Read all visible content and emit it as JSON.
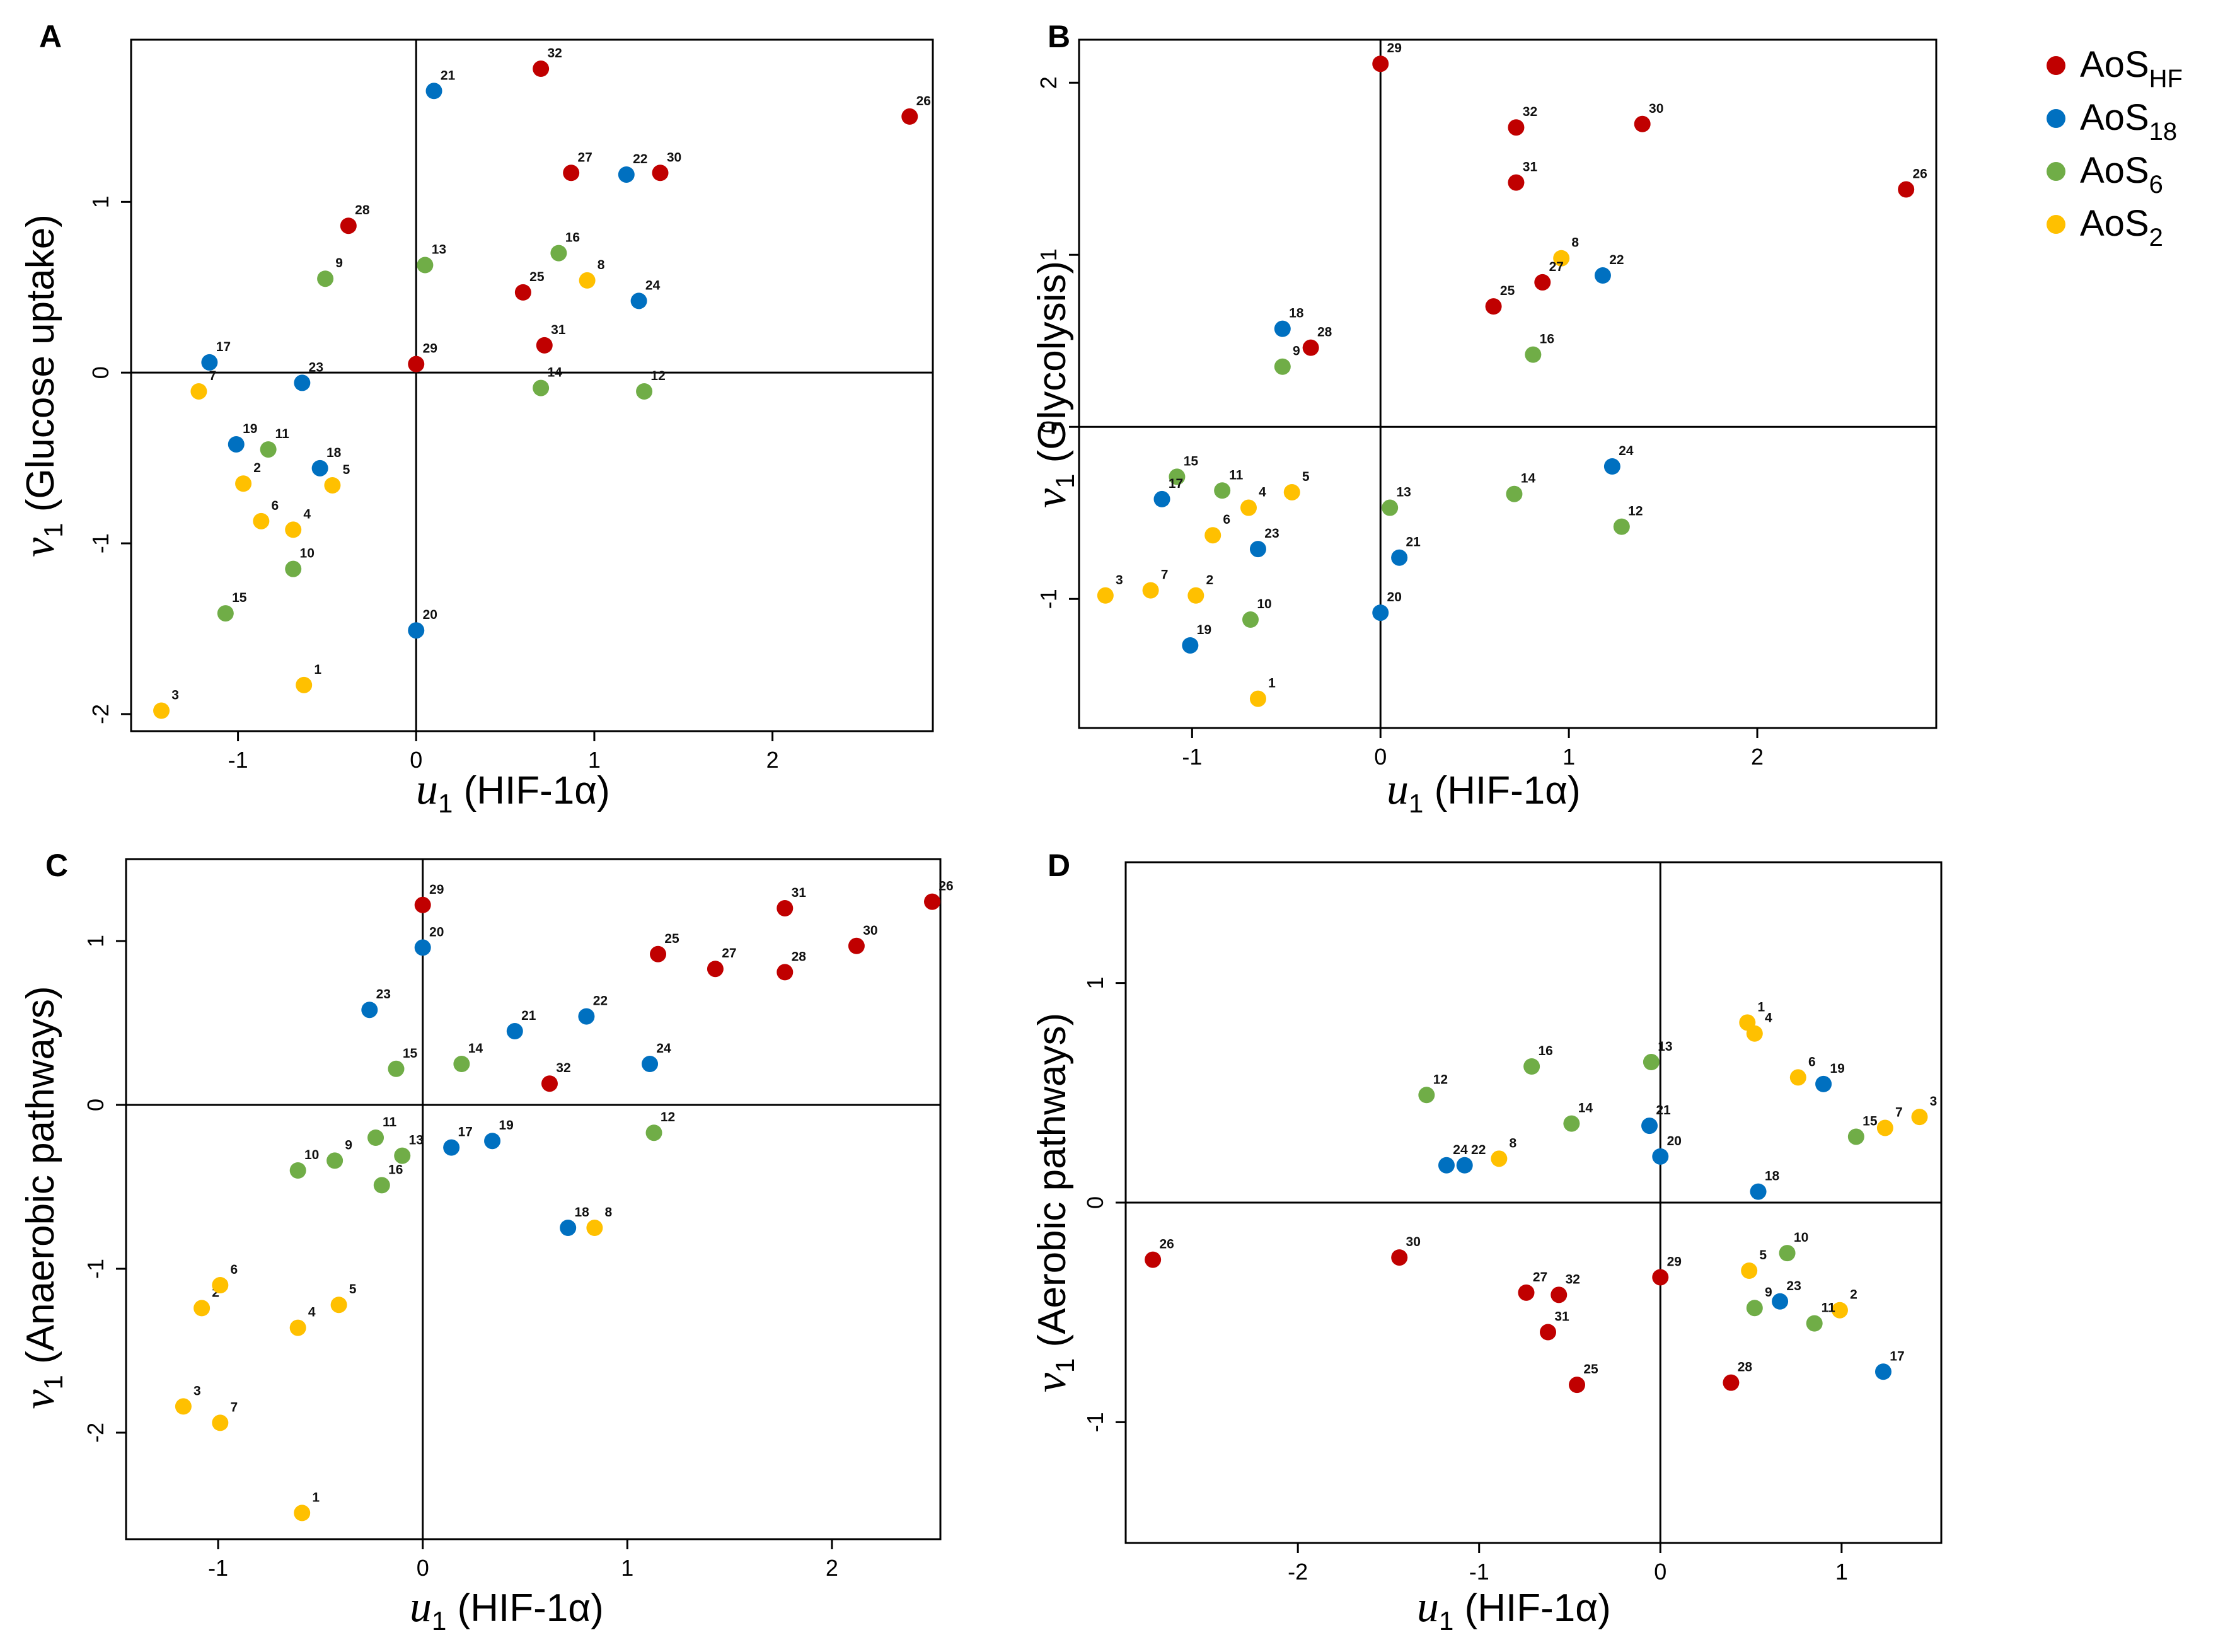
{
  "legend": {
    "groups": [
      {
        "key": "HF",
        "base": "AoS",
        "sub": "HF",
        "color": "#c00000"
      },
      {
        "key": "18",
        "base": "AoS",
        "sub": "18",
        "color": "#0070c0"
      },
      {
        "key": "6",
        "base": "AoS",
        "sub": "6",
        "color": "#70ad47"
      },
      {
        "key": "2",
        "base": "AoS",
        "sub": "2",
        "color": "#ffc000"
      }
    ]
  },
  "chart_data": [
    {
      "type": "scatter",
      "panel": "A",
      "xlabel": {
        "symbol": "u",
        "sub": "1",
        "text": " (HIF-1α)"
      },
      "ylabel": {
        "symbol": "v",
        "sub": "1",
        "text": "  (Glucose uptake)"
      },
      "xlim": [
        -1.6,
        2.9
      ],
      "ylim": [
        -2.1,
        1.95
      ],
      "xticks": [
        {
          "v": -1,
          "label": "-1"
        },
        {
          "v": 0,
          "label": "0"
        },
        {
          "v": 1,
          "label": "1"
        },
        {
          "v": 2,
          "label": "2"
        }
      ],
      "yticks": [
        {
          "v": -2,
          "label": "-2"
        },
        {
          "v": -1,
          "label": "-1"
        },
        {
          "v": 0,
          "label": "0"
        },
        {
          "v": 1,
          "label": "1"
        }
      ],
      "points": [
        {
          "id": "1",
          "group": "2",
          "x": -0.63,
          "y": -1.83
        },
        {
          "id": "2",
          "group": "2",
          "x": -0.97,
          "y": -0.65
        },
        {
          "id": "3",
          "group": "2",
          "x": -1.43,
          "y": -1.98
        },
        {
          "id": "4",
          "group": "2",
          "x": -0.69,
          "y": -0.92
        },
        {
          "id": "5",
          "group": "2",
          "x": -0.47,
          "y": -0.66
        },
        {
          "id": "6",
          "group": "2",
          "x": -0.87,
          "y": -0.87
        },
        {
          "id": "7",
          "group": "2",
          "x": -1.22,
          "y": -0.11
        },
        {
          "id": "8",
          "group": "2",
          "x": 0.96,
          "y": 0.54
        },
        {
          "id": "9",
          "group": "6",
          "x": -0.51,
          "y": 0.55
        },
        {
          "id": "10",
          "group": "6",
          "x": -0.69,
          "y": -1.15
        },
        {
          "id": "11",
          "group": "6",
          "x": -0.83,
          "y": -0.45
        },
        {
          "id": "12",
          "group": "6",
          "x": 1.28,
          "y": -0.11
        },
        {
          "id": "13",
          "group": "6",
          "x": 0.05,
          "y": 0.63
        },
        {
          "id": "14",
          "group": "6",
          "x": 0.7,
          "y": -0.09
        },
        {
          "id": "15",
          "group": "6",
          "x": -1.07,
          "y": -1.41
        },
        {
          "id": "16",
          "group": "6",
          "x": 0.8,
          "y": 0.7
        },
        {
          "id": "17",
          "group": "18",
          "x": -1.16,
          "y": 0.06
        },
        {
          "id": "18",
          "group": "18",
          "x": -0.54,
          "y": -0.56
        },
        {
          "id": "19",
          "group": "18",
          "x": -1.01,
          "y": -0.42
        },
        {
          "id": "20",
          "group": "18",
          "x": 0.0,
          "y": -1.51
        },
        {
          "id": "21",
          "group": "18",
          "x": 0.1,
          "y": 1.65
        },
        {
          "id": "22",
          "group": "18",
          "x": 1.18,
          "y": 1.16
        },
        {
          "id": "23",
          "group": "18",
          "x": -0.64,
          "y": -0.06
        },
        {
          "id": "24",
          "group": "18",
          "x": 1.25,
          "y": 0.42
        },
        {
          "id": "25",
          "group": "HF",
          "x": 0.6,
          "y": 0.47
        },
        {
          "id": "26",
          "group": "HF",
          "x": 2.77,
          "y": 1.5
        },
        {
          "id": "27",
          "group": "HF",
          "x": 0.87,
          "y": 1.17
        },
        {
          "id": "28",
          "group": "HF",
          "x": -0.38,
          "y": 0.86
        },
        {
          "id": "29",
          "group": "HF",
          "x": 0.0,
          "y": 0.05
        },
        {
          "id": "30",
          "group": "HF",
          "x": 1.37,
          "y": 1.17
        },
        {
          "id": "31",
          "group": "HF",
          "x": 0.72,
          "y": 0.16
        },
        {
          "id": "32",
          "group": "HF",
          "x": 0.7,
          "y": 1.78
        }
      ]
    },
    {
      "type": "scatter",
      "panel": "B",
      "xlabel": {
        "symbol": "u",
        "sub": "1",
        "text": " (HIF-1α)"
      },
      "ylabel": {
        "symbol": "v",
        "sub": "1",
        "text": "  (Glycolysis)"
      },
      "xlim": [
        -1.6,
        2.95
      ],
      "ylim": [
        -1.75,
        2.25
      ],
      "xticks": [
        {
          "v": -1,
          "label": "-1"
        },
        {
          "v": 0,
          "label": "0"
        },
        {
          "v": 1,
          "label": "1"
        },
        {
          "v": 2,
          "label": "2"
        }
      ],
      "yticks": [
        {
          "v": -1,
          "label": "-1"
        },
        {
          "v": 0,
          "label": "0"
        },
        {
          "v": 1,
          "label": "1"
        },
        {
          "v": 2,
          "label": "2"
        }
      ],
      "points": [
        {
          "id": "1",
          "group": "2",
          "x": -0.65,
          "y": -1.58
        },
        {
          "id": "2",
          "group": "2",
          "x": -0.98,
          "y": -0.98
        },
        {
          "id": "3",
          "group": "2",
          "x": -1.46,
          "y": -0.98
        },
        {
          "id": "4",
          "group": "2",
          "x": -0.7,
          "y": -0.47
        },
        {
          "id": "5",
          "group": "2",
          "x": -0.47,
          "y": -0.38
        },
        {
          "id": "6",
          "group": "2",
          "x": -0.89,
          "y": -0.63
        },
        {
          "id": "7",
          "group": "2",
          "x": -1.22,
          "y": -0.95
        },
        {
          "id": "8",
          "group": "2",
          "x": 0.96,
          "y": 0.98
        },
        {
          "id": "9",
          "group": "6",
          "x": -0.52,
          "y": 0.35
        },
        {
          "id": "10",
          "group": "6",
          "x": -0.69,
          "y": -1.12
        },
        {
          "id": "11",
          "group": "6",
          "x": -0.84,
          "y": -0.37
        },
        {
          "id": "12",
          "group": "6",
          "x": 1.28,
          "y": -0.58
        },
        {
          "id": "13",
          "group": "6",
          "x": 0.05,
          "y": -0.47
        },
        {
          "id": "14",
          "group": "6",
          "x": 0.71,
          "y": -0.39
        },
        {
          "id": "15",
          "group": "6",
          "x": -1.08,
          "y": -0.29
        },
        {
          "id": "16",
          "group": "6",
          "x": 0.81,
          "y": 0.42
        },
        {
          "id": "17",
          "group": "18",
          "x": -1.16,
          "y": -0.42
        },
        {
          "id": "18",
          "group": "18",
          "x": -0.52,
          "y": 0.57
        },
        {
          "id": "19",
          "group": "18",
          "x": -1.01,
          "y": -1.27
        },
        {
          "id": "20",
          "group": "18",
          "x": 0.0,
          "y": -1.08
        },
        {
          "id": "21",
          "group": "18",
          "x": 0.1,
          "y": -0.76
        },
        {
          "id": "22",
          "group": "18",
          "x": 1.18,
          "y": 0.88
        },
        {
          "id": "23",
          "group": "18",
          "x": -0.65,
          "y": -0.71
        },
        {
          "id": "24",
          "group": "18",
          "x": 1.23,
          "y": -0.23
        },
        {
          "id": "25",
          "group": "HF",
          "x": 0.6,
          "y": 0.7
        },
        {
          "id": "26",
          "group": "HF",
          "x": 2.79,
          "y": 1.38
        },
        {
          "id": "27",
          "group": "HF",
          "x": 0.86,
          "y": 0.84
        },
        {
          "id": "28",
          "group": "HF",
          "x": -0.37,
          "y": 0.46
        },
        {
          "id": "29",
          "group": "HF",
          "x": 0.0,
          "y": 2.11
        },
        {
          "id": "30",
          "group": "HF",
          "x": 1.39,
          "y": 1.76
        },
        {
          "id": "31",
          "group": "HF",
          "x": 0.72,
          "y": 1.42
        },
        {
          "id": "32",
          "group": "HF",
          "x": 0.72,
          "y": 1.74
        }
      ]
    },
    {
      "type": "scatter",
      "panel": "C",
      "xlabel": {
        "symbol": "u",
        "sub": "1",
        "text": " (HIF-1α)"
      },
      "ylabel": {
        "symbol": "v",
        "sub": "1",
        "text": "  (Anaerobic pathways)"
      },
      "xlim": [
        -1.45,
        2.53
      ],
      "ylim": [
        -2.65,
        1.5
      ],
      "xticks": [
        {
          "v": -1,
          "label": "-1"
        },
        {
          "v": 0,
          "label": "0"
        },
        {
          "v": 1,
          "label": "1"
        },
        {
          "v": 2,
          "label": "2"
        }
      ],
      "yticks": [
        {
          "v": -2,
          "label": "-2"
        },
        {
          "v": -1,
          "label": "-1"
        },
        {
          "v": 0,
          "label": "0"
        },
        {
          "v": 1,
          "label": "1"
        }
      ],
      "points": [
        {
          "id": "1",
          "group": "2",
          "x": -0.59,
          "y": -2.49
        },
        {
          "id": "2",
          "group": "2",
          "x": -1.08,
          "y": -1.24
        },
        {
          "id": "3",
          "group": "2",
          "x": -1.17,
          "y": -1.84
        },
        {
          "id": "4",
          "group": "2",
          "x": -0.61,
          "y": -1.36
        },
        {
          "id": "5",
          "group": "2",
          "x": -0.41,
          "y": -1.22
        },
        {
          "id": "6",
          "group": "2",
          "x": -0.99,
          "y": -1.1
        },
        {
          "id": "7",
          "group": "2",
          "x": -0.99,
          "y": -1.94
        },
        {
          "id": "8",
          "group": "2",
          "x": 0.84,
          "y": -0.75
        },
        {
          "id": "9",
          "group": "6",
          "x": -0.43,
          "y": -0.34
        },
        {
          "id": "10",
          "group": "6",
          "x": -0.61,
          "y": -0.4
        },
        {
          "id": "11",
          "group": "6",
          "x": -0.23,
          "y": -0.2
        },
        {
          "id": "12",
          "group": "6",
          "x": 1.13,
          "y": -0.17
        },
        {
          "id": "13",
          "group": "6",
          "x": -0.1,
          "y": -0.31
        },
        {
          "id": "14",
          "group": "6",
          "x": 0.19,
          "y": 0.25
        },
        {
          "id": "15",
          "group": "6",
          "x": -0.13,
          "y": 0.22
        },
        {
          "id": "16",
          "group": "6",
          "x": -0.2,
          "y": -0.49
        },
        {
          "id": "17",
          "group": "18",
          "x": 0.14,
          "y": -0.26
        },
        {
          "id": "18",
          "group": "18",
          "x": 0.71,
          "y": -0.75
        },
        {
          "id": "19",
          "group": "18",
          "x": 0.34,
          "y": -0.22
        },
        {
          "id": "20",
          "group": "18",
          "x": 0.0,
          "y": 0.96
        },
        {
          "id": "21",
          "group": "18",
          "x": 0.45,
          "y": 0.45
        },
        {
          "id": "22",
          "group": "18",
          "x": 0.8,
          "y": 0.54
        },
        {
          "id": "23",
          "group": "18",
          "x": -0.26,
          "y": 0.58
        },
        {
          "id": "24",
          "group": "18",
          "x": 1.11,
          "y": 0.25
        },
        {
          "id": "25",
          "group": "HF",
          "x": 1.15,
          "y": 0.92
        },
        {
          "id": "26",
          "group": "HF",
          "x": 2.49,
          "y": 1.24
        },
        {
          "id": "27",
          "group": "HF",
          "x": 1.43,
          "y": 0.83
        },
        {
          "id": "28",
          "group": "HF",
          "x": 1.77,
          "y": 0.81
        },
        {
          "id": "29",
          "group": "HF",
          "x": 0.0,
          "y": 1.22
        },
        {
          "id": "30",
          "group": "HF",
          "x": 2.12,
          "y": 0.97
        },
        {
          "id": "31",
          "group": "HF",
          "x": 1.77,
          "y": 1.2
        },
        {
          "id": "32",
          "group": "HF",
          "x": 0.62,
          "y": 0.13
        }
      ]
    },
    {
      "type": "scatter",
      "panel": "D",
      "xlabel": {
        "symbol": "u",
        "sub": "1",
        "text": " (HIF-1α)"
      },
      "ylabel": {
        "symbol": "v",
        "sub": "1",
        "text": "  (Aerobic pathways)"
      },
      "xlim": [
        -2.95,
        1.55
      ],
      "ylim": [
        -1.55,
        1.55
      ],
      "xticks": [
        {
          "v": -2,
          "label": "-2"
        },
        {
          "v": -1,
          "label": "-1"
        },
        {
          "v": 0,
          "label": "0"
        },
        {
          "v": 1,
          "label": "1"
        }
      ],
      "yticks": [
        {
          "v": -1,
          "label": "-1"
        },
        {
          "v": 0,
          "label": "0"
        },
        {
          "v": 1,
          "label": "1"
        }
      ],
      "points": [
        {
          "id": "1",
          "group": "2",
          "x": 0.48,
          "y": 0.82
        },
        {
          "id": "2",
          "group": "2",
          "x": 0.99,
          "y": -0.49
        },
        {
          "id": "3",
          "group": "2",
          "x": 1.43,
          "y": 0.39
        },
        {
          "id": "4",
          "group": "2",
          "x": 0.52,
          "y": 0.77
        },
        {
          "id": "5",
          "group": "2",
          "x": 0.49,
          "y": -0.31
        },
        {
          "id": "6",
          "group": "2",
          "x": 0.76,
          "y": 0.57
        },
        {
          "id": "7",
          "group": "2",
          "x": 1.24,
          "y": 0.34
        },
        {
          "id": "8",
          "group": "2",
          "x": -0.89,
          "y": 0.2
        },
        {
          "id": "9",
          "group": "6",
          "x": 0.52,
          "y": -0.48
        },
        {
          "id": "10",
          "group": "6",
          "x": 0.7,
          "y": -0.23
        },
        {
          "id": "11",
          "group": "6",
          "x": 0.85,
          "y": -0.55
        },
        {
          "id": "12",
          "group": "6",
          "x": -1.29,
          "y": 0.49
        },
        {
          "id": "13",
          "group": "6",
          "x": -0.05,
          "y": 0.64
        },
        {
          "id": "14",
          "group": "6",
          "x": -0.49,
          "y": 0.36
        },
        {
          "id": "15",
          "group": "6",
          "x": 1.08,
          "y": 0.3
        },
        {
          "id": "16",
          "group": "6",
          "x": -0.71,
          "y": 0.62
        },
        {
          "id": "17",
          "group": "18",
          "x": 1.23,
          "y": -0.77
        },
        {
          "id": "18",
          "group": "18",
          "x": 0.54,
          "y": 0.05
        },
        {
          "id": "19",
          "group": "18",
          "x": 0.9,
          "y": 0.54
        },
        {
          "id": "20",
          "group": "18",
          "x": 0.0,
          "y": 0.21
        },
        {
          "id": "21",
          "group": "18",
          "x": -0.06,
          "y": 0.35
        },
        {
          "id": "22",
          "group": "18",
          "x": -1.08,
          "y": 0.17
        },
        {
          "id": "23",
          "group": "18",
          "x": 0.66,
          "y": -0.45
        },
        {
          "id": "24",
          "group": "18",
          "x": -1.18,
          "y": 0.17
        },
        {
          "id": "25",
          "group": "HF",
          "x": -0.46,
          "y": -0.83
        },
        {
          "id": "26",
          "group": "HF",
          "x": -2.8,
          "y": -0.26
        },
        {
          "id": "27",
          "group": "HF",
          "x": -0.74,
          "y": -0.41
        },
        {
          "id": "28",
          "group": "HF",
          "x": 0.39,
          "y": -0.82
        },
        {
          "id": "29",
          "group": "HF",
          "x": 0.0,
          "y": -0.34
        },
        {
          "id": "30",
          "group": "HF",
          "x": -1.44,
          "y": -0.25
        },
        {
          "id": "31",
          "group": "HF",
          "x": -0.62,
          "y": -0.59
        },
        {
          "id": "32",
          "group": "HF",
          "x": -0.56,
          "y": -0.42
        }
      ]
    }
  ]
}
